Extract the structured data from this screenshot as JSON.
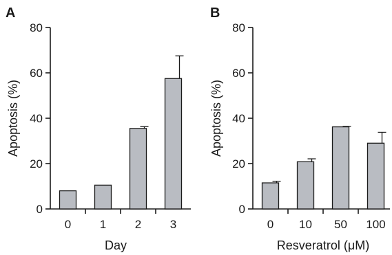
{
  "chart_data": [
    {
      "type": "bar",
      "panel_label": "A",
      "categories": [
        "0",
        "1",
        "2",
        "3"
      ],
      "values": [
        8,
        10.5,
        35.5,
        57.5
      ],
      "errors": [
        0,
        0,
        0.8,
        10
      ],
      "xlabel": "Day",
      "ylabel": "Apoptosis (%)",
      "ylim": [
        0,
        80
      ],
      "yticks": [
        "0",
        "20",
        "40",
        "60",
        "80"
      ],
      "grid": false,
      "bar_color": "#b9bcc2"
    },
    {
      "type": "bar",
      "panel_label": "B",
      "categories": [
        "0",
        "10",
        "50",
        "100"
      ],
      "values": [
        11.5,
        20.8,
        36.2,
        29
      ],
      "errors": [
        0.7,
        1.3,
        0.2,
        4.8
      ],
      "xlabel": "Resveratrol (μM)",
      "ylabel": "Apoptosis (%)",
      "ylim": [
        0,
        80
      ],
      "yticks": [
        "0",
        "20",
        "40",
        "60",
        "80"
      ],
      "grid": false,
      "bar_color": "#b9bcc2"
    }
  ]
}
